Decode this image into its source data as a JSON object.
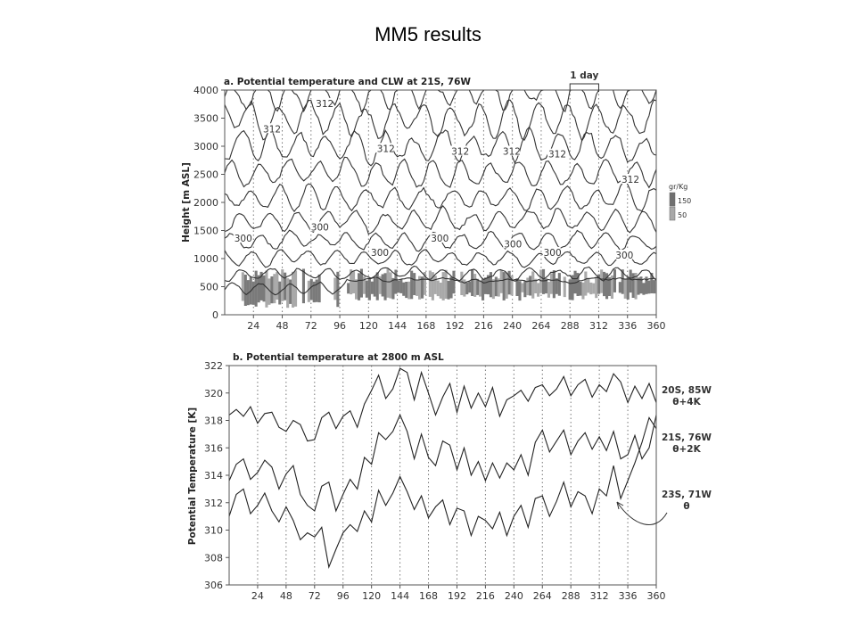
{
  "page": {
    "title": "MM5 results"
  },
  "chart_data": [
    {
      "type": "line",
      "title": "a. Potential temperature and CLW at 21S, 76W",
      "xlabel": "",
      "ylabel": "Height [m ASL]",
      "xlim": [
        0,
        360
      ],
      "ylim": [
        0,
        4000
      ],
      "x_ticks": [
        24,
        48,
        72,
        96,
        120,
        144,
        168,
        192,
        216,
        240,
        264,
        288,
        312,
        336,
        360
      ],
      "y_ticks": [
        0,
        500,
        1000,
        1500,
        2000,
        2500,
        3000,
        3500,
        4000
      ],
      "vertical_gridlines": [
        24,
        48,
        72,
        96,
        120,
        144,
        168,
        192,
        216,
        240,
        264,
        288,
        312,
        336
      ],
      "bracket_label": "1 day",
      "bracket_range": [
        288,
        312
      ],
      "contour_labels": [
        {
          "text": "312",
          "x": 32,
          "y": 3250
        },
        {
          "text": "312",
          "x": 76,
          "y": 3700
        },
        {
          "text": "312",
          "x": 127,
          "y": 2900
        },
        {
          "text": "312",
          "x": 189,
          "y": 2850
        },
        {
          "text": "312",
          "x": 232,
          "y": 2850
        },
        {
          "text": "312",
          "x": 270,
          "y": 2800
        },
        {
          "text": "312",
          "x": 331,
          "y": 2350
        },
        {
          "text": "300",
          "x": 8,
          "y": 1300
        },
        {
          "text": "300",
          "x": 72,
          "y": 1500
        },
        {
          "text": "300",
          "x": 122,
          "y": 1050
        },
        {
          "text": "300",
          "x": 172,
          "y": 1300
        },
        {
          "text": "300",
          "x": 233,
          "y": 1200
        },
        {
          "text": "300",
          "x": 266,
          "y": 1050
        },
        {
          "text": "300",
          "x": 326,
          "y": 1000
        }
      ],
      "colorbar": {
        "unit": "gr/Kg",
        "levels": [
          150,
          50
        ],
        "colors": [
          "#707070",
          "#a8a8a8"
        ]
      }
    },
    {
      "type": "line",
      "title": "b. Potential temperature at 2800 m ASL",
      "xlabel": "",
      "ylabel": "Potential Temperature [K]",
      "xlim": [
        0,
        360
      ],
      "ylim": [
        306,
        322
      ],
      "x_ticks": [
        24,
        48,
        72,
        96,
        120,
        144,
        168,
        192,
        216,
        240,
        264,
        288,
        312,
        336,
        360
      ],
      "y_ticks": [
        306,
        308,
        310,
        312,
        314,
        316,
        318,
        320,
        322
      ],
      "vertical_gridlines": [
        24,
        48,
        72,
        96,
        120,
        144,
        168,
        192,
        216,
        240,
        264,
        288,
        312,
        336
      ],
      "series": [
        {
          "name": "20S, 85W θ+4K",
          "legend_lines": [
            "20S, 85W",
            "θ+4K"
          ],
          "x": [
            0,
            6,
            12,
            18,
            24,
            30,
            36,
            42,
            48,
            54,
            60,
            66,
            72,
            78,
            84,
            90,
            96,
            102,
            108,
            114,
            120,
            126,
            132,
            138,
            144,
            150,
            156,
            162,
            168,
            174,
            180,
            186,
            192,
            198,
            204,
            210,
            216,
            222,
            228,
            234,
            240,
            246,
            252,
            258,
            264,
            270,
            276,
            282,
            288,
            294,
            300,
            306,
            312,
            318,
            324,
            330,
            336,
            342,
            348,
            354,
            360
          ],
          "values": [
            318.4,
            318.8,
            318.3,
            319.0,
            317.8,
            318.5,
            318.6,
            317.5,
            317.2,
            318.0,
            317.7,
            316.5,
            316.6,
            318.2,
            318.6,
            317.4,
            318.3,
            318.7,
            317.5,
            319.2,
            320.2,
            321.3,
            319.6,
            320.3,
            321.8,
            321.5,
            319.5,
            321.5,
            320.0,
            318.4,
            319.7,
            320.7,
            318.6,
            320.5,
            318.9,
            320.0,
            319.0,
            320.4,
            318.3,
            319.5,
            319.8,
            320.2,
            319.4,
            320.4,
            320.6,
            319.8,
            320.3,
            321.2,
            319.8,
            320.6,
            321.0,
            319.7,
            320.6,
            320.1,
            321.4,
            320.8,
            319.3,
            320.5,
            319.6,
            320.7,
            319.3
          ]
        },
        {
          "name": "21S, 76W θ+2K",
          "legend_lines": [
            "21S, 76W",
            "θ+2K"
          ],
          "x": [
            0,
            6,
            12,
            18,
            24,
            30,
            36,
            42,
            48,
            54,
            60,
            66,
            72,
            78,
            84,
            90,
            96,
            102,
            108,
            114,
            120,
            126,
            132,
            138,
            144,
            150,
            156,
            162,
            168,
            174,
            180,
            186,
            192,
            198,
            204,
            210,
            216,
            222,
            228,
            234,
            240,
            246,
            252,
            258,
            264,
            270,
            276,
            282,
            288,
            294,
            300,
            306,
            312,
            318,
            324,
            330,
            336,
            342,
            348,
            354,
            360
          ],
          "values": [
            313.6,
            314.8,
            315.2,
            313.7,
            314.2,
            315.1,
            314.6,
            313.0,
            314.1,
            314.7,
            312.6,
            311.8,
            311.4,
            313.2,
            313.5,
            311.4,
            312.6,
            313.7,
            313.0,
            315.3,
            314.8,
            317.1,
            316.6,
            317.2,
            318.4,
            317.2,
            315.2,
            317.0,
            315.3,
            314.7,
            316.5,
            316.2,
            314.4,
            316.0,
            314.0,
            315.0,
            313.6,
            314.9,
            313.8,
            314.9,
            314.4,
            315.5,
            314.0,
            316.4,
            317.3,
            315.7,
            316.5,
            317.3,
            315.5,
            316.5,
            317.1,
            315.9,
            316.8,
            315.8,
            317.2,
            315.2,
            315.5,
            316.9,
            315.2,
            316.0,
            318.4
          ]
        },
        {
          "name": "23S, 71W θ",
          "legend_lines": [
            "23S, 71W",
            "θ"
          ],
          "x": [
            0,
            6,
            12,
            18,
            24,
            30,
            36,
            42,
            48,
            54,
            60,
            66,
            72,
            78,
            84,
            90,
            96,
            102,
            108,
            114,
            120,
            126,
            132,
            138,
            144,
            150,
            156,
            162,
            168,
            174,
            180,
            186,
            192,
            198,
            204,
            210,
            216,
            222,
            228,
            234,
            240,
            246,
            252,
            258,
            264,
            270,
            276,
            282,
            288,
            294,
            300,
            306,
            312,
            318,
            324,
            330,
            336,
            342,
            348,
            354,
            360
          ],
          "values": [
            311.0,
            312.6,
            313.0,
            311.2,
            311.8,
            312.7,
            311.4,
            310.6,
            311.7,
            310.7,
            309.3,
            309.8,
            309.5,
            310.2,
            307.3,
            308.6,
            309.8,
            310.4,
            309.9,
            311.4,
            310.6,
            312.9,
            311.8,
            312.7,
            313.9,
            312.8,
            311.5,
            312.5,
            310.9,
            311.7,
            312.2,
            310.4,
            311.6,
            311.4,
            309.6,
            311.0,
            310.7,
            310.1,
            311.3,
            309.6,
            311.0,
            311.8,
            310.2,
            312.3,
            312.5,
            311.0,
            312.1,
            313.5,
            311.7,
            312.8,
            312.5,
            311.2,
            313.0,
            312.5,
            314.7,
            312.3,
            313.6,
            314.9,
            316.4,
            318.2,
            317.4
          ]
        }
      ]
    }
  ]
}
